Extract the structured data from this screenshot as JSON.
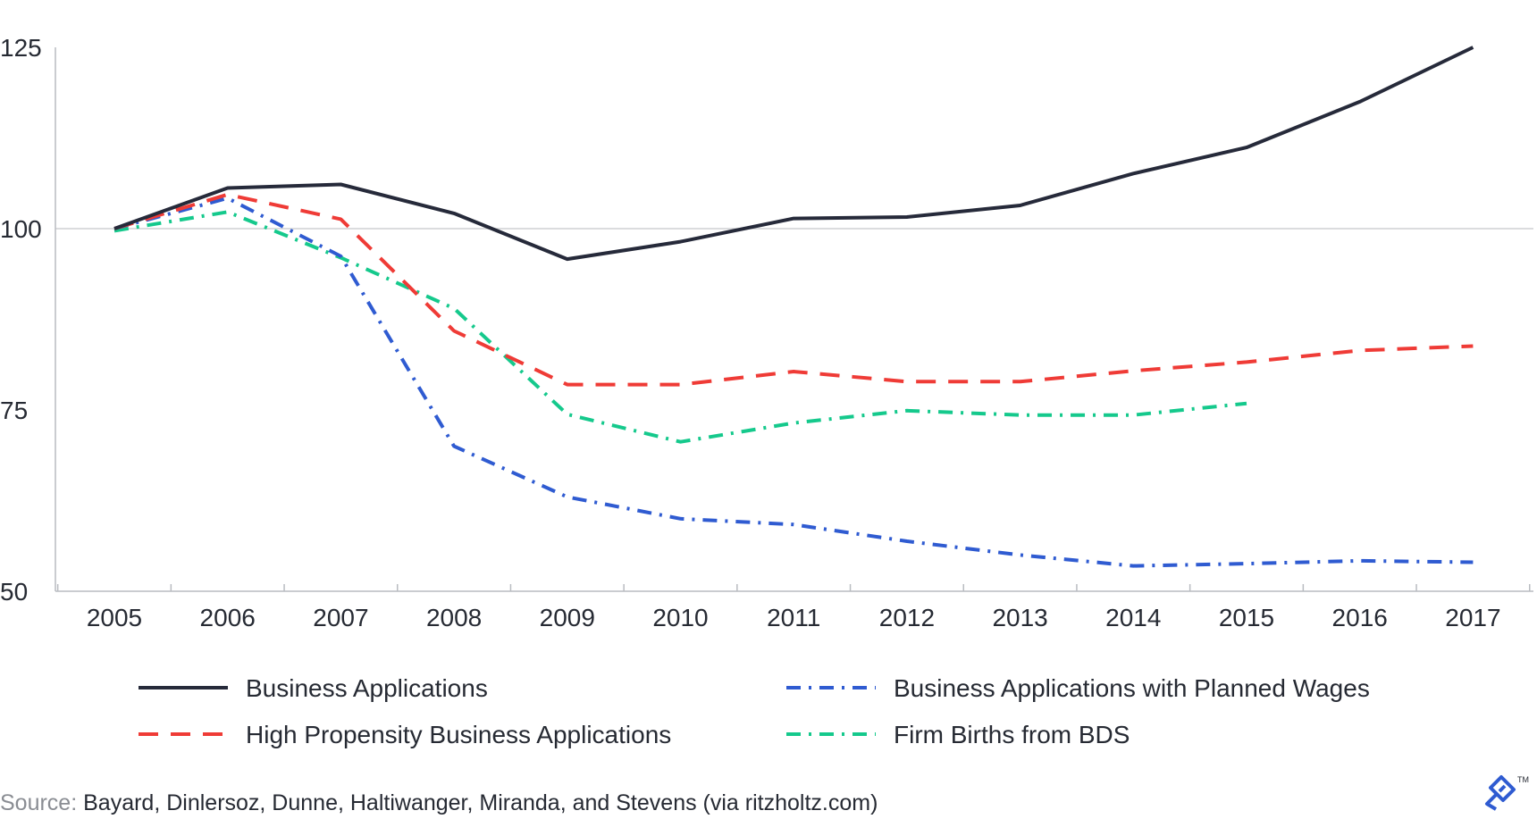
{
  "chart_data": {
    "type": "line",
    "x": [
      "2005",
      "2006",
      "2007",
      "2008",
      "2009",
      "2010",
      "2011",
      "2012",
      "2013",
      "2014",
      "2015",
      "2016",
      "2017"
    ],
    "ylim": [
      50,
      125
    ],
    "yticks": [
      "50",
      "75",
      "100",
      "125"
    ],
    "reference_line": 100,
    "series": [
      {
        "name": "Business Applications",
        "color": "#262a3a",
        "dash": "solid",
        "values": [
          100,
          105.6,
          106.1,
          102.1,
          95.8,
          98.2,
          101.4,
          101.6,
          103.2,
          107.6,
          111.2,
          117.5,
          125.0
        ]
      },
      {
        "name": "Business Applications with Planned Wages",
        "color": "#2f5bd1",
        "dash": "dashdot",
        "values": [
          100,
          104.2,
          96.2,
          70.0,
          63.0,
          60.0,
          59.2,
          56.9,
          55.0,
          53.5,
          53.8,
          54.2,
          54.0
        ]
      },
      {
        "name": "High Propensity Business Applications",
        "color": "#ef3b36",
        "dash": "dashed",
        "values": [
          100,
          104.7,
          101.3,
          85.9,
          78.5,
          78.5,
          80.3,
          78.9,
          78.9,
          80.4,
          81.6,
          83.2,
          83.8
        ]
      },
      {
        "name": "Firm Births from BDS",
        "color": "#15c98c",
        "dash": "dashdot",
        "values": [
          99.7,
          102.3,
          96.0,
          89.0,
          74.4,
          70.6,
          73.2,
          74.9,
          74.3,
          74.3,
          75.9,
          null,
          null
        ]
      }
    ]
  },
  "source": {
    "prefix": "Source:",
    "text": " Bayard, Dinlersoz, Dunne, Haltiwanger, Miranda, and Stevens (via ritzholtz.com)"
  },
  "logo": {
    "icon": "toptal-logo",
    "trademark": "TM",
    "color": "#2f5bd1"
  }
}
